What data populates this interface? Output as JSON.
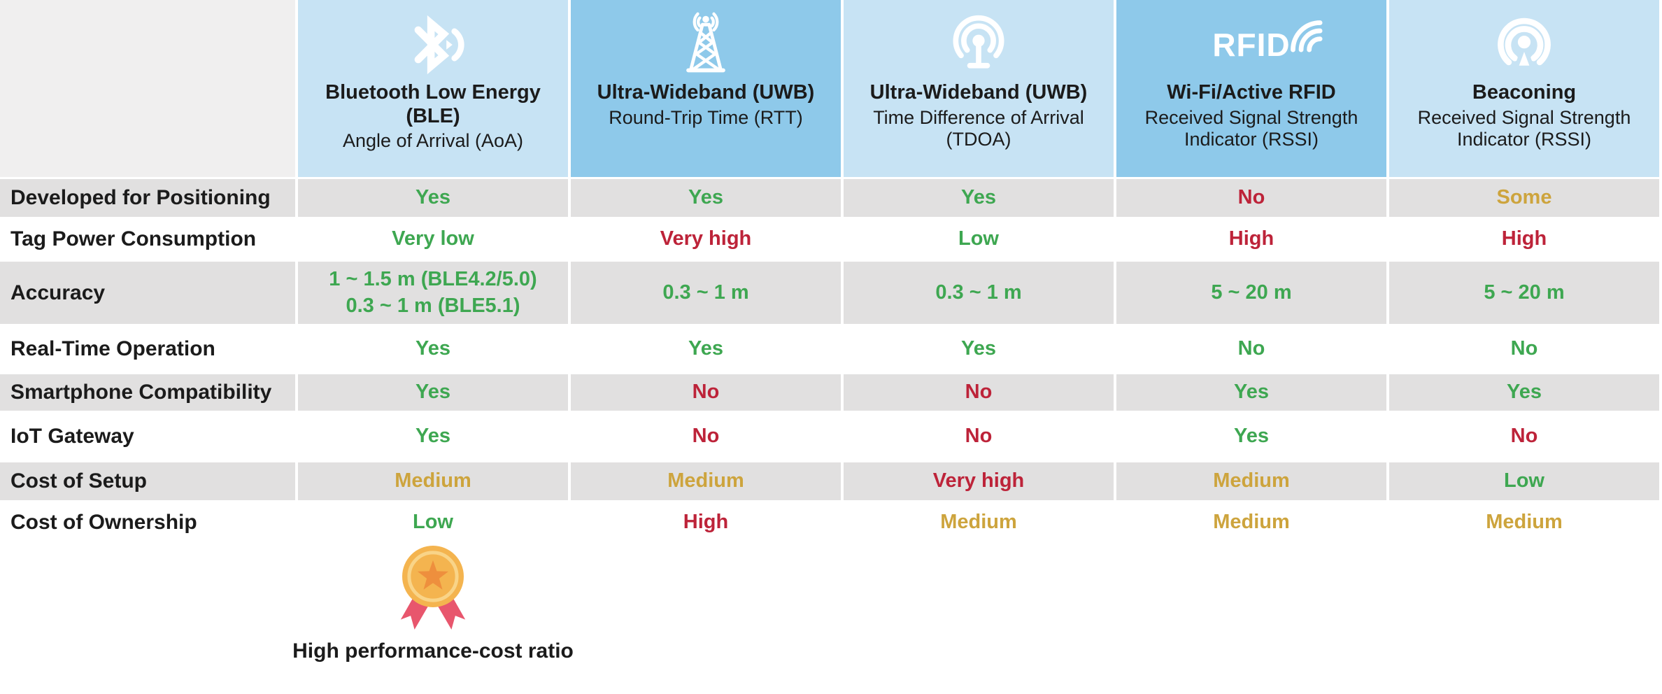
{
  "chart_data": {
    "type": "table",
    "columns": [
      {
        "title": "Bluetooth Low Energy (BLE)",
        "subtitle": "Angle of Arrival (AoA)",
        "icon": "bluetooth-icon",
        "shade": "light"
      },
      {
        "title": "Ultra-Wideband (UWB)",
        "subtitle": "Round-Trip Time (RTT)",
        "icon": "radio-tower-icon",
        "shade": "dark"
      },
      {
        "title": "Ultra-Wideband (UWB)",
        "subtitle": "Time Difference of Arrival (TDOA)",
        "icon": "antenna-icon",
        "shade": "light"
      },
      {
        "title": "Wi-Fi/Active RFID",
        "subtitle": "Received Signal Strength Indicator (RSSI)",
        "icon": "rfid-icon",
        "shade": "dark"
      },
      {
        "title": "Beaconing",
        "subtitle": "Received Signal Strength Indicator (RSSI)",
        "icon": "beacon-icon",
        "shade": "light"
      }
    ],
    "rows": [
      {
        "label": "Developed for Positioning",
        "values": [
          {
            "text": "Yes",
            "status": "good"
          },
          {
            "text": "Yes",
            "status": "good"
          },
          {
            "text": "Yes",
            "status": "good"
          },
          {
            "text": "No",
            "status": "bad"
          },
          {
            "text": "Some",
            "status": "neutral"
          }
        ]
      },
      {
        "label": "Tag Power Consumption",
        "values": [
          {
            "text": "Very low",
            "status": "good"
          },
          {
            "text": "Very high",
            "status": "bad"
          },
          {
            "text": "Low",
            "status": "good"
          },
          {
            "text": "High",
            "status": "bad"
          },
          {
            "text": "High",
            "status": "bad"
          }
        ]
      },
      {
        "label": "Accuracy",
        "values": [
          {
            "text": "1 ~ 1.5 m (BLE4.2/5.0)\n0.3 ~ 1 m (BLE5.1)",
            "status": "good"
          },
          {
            "text": "0.3 ~ 1 m",
            "status": "good"
          },
          {
            "text": "0.3 ~ 1 m",
            "status": "good"
          },
          {
            "text": "5 ~ 20 m",
            "status": "good"
          },
          {
            "text": "5 ~ 20 m",
            "status": "good"
          }
        ]
      },
      {
        "label": "Real-Time Operation",
        "values": [
          {
            "text": "Yes",
            "status": "good"
          },
          {
            "text": "Yes",
            "status": "good"
          },
          {
            "text": "Yes",
            "status": "good"
          },
          {
            "text": "No",
            "status": "good"
          },
          {
            "text": "No",
            "status": "good"
          }
        ]
      },
      {
        "label": "Smartphone Compatibility",
        "values": [
          {
            "text": "Yes",
            "status": "good"
          },
          {
            "text": "No",
            "status": "bad"
          },
          {
            "text": "No",
            "status": "bad"
          },
          {
            "text": "Yes",
            "status": "good"
          },
          {
            "text": "Yes",
            "status": "good"
          }
        ]
      },
      {
        "label": "IoT Gateway",
        "values": [
          {
            "text": "Yes",
            "status": "good"
          },
          {
            "text": "No",
            "status": "bad"
          },
          {
            "text": "No",
            "status": "bad"
          },
          {
            "text": "Yes",
            "status": "good"
          },
          {
            "text": "No",
            "status": "bad"
          }
        ]
      },
      {
        "label": "Cost of Setup",
        "values": [
          {
            "text": "Medium",
            "status": "neutral"
          },
          {
            "text": "Medium",
            "status": "neutral"
          },
          {
            "text": "Very high",
            "status": "bad"
          },
          {
            "text": "Medium",
            "status": "neutral"
          },
          {
            "text": "Low",
            "status": "good"
          }
        ]
      },
      {
        "label": "Cost of Ownership",
        "values": [
          {
            "text": "Low",
            "status": "good"
          },
          {
            "text": "High",
            "status": "bad"
          },
          {
            "text": "Medium",
            "status": "neutral"
          },
          {
            "text": "Medium",
            "status": "neutral"
          },
          {
            "text": "Medium",
            "status": "neutral"
          }
        ]
      }
    ]
  },
  "badge": {
    "icon": "medal-icon",
    "caption": "High performance-cost ratio"
  },
  "rfid_icon_text": "RFID",
  "colors": {
    "good": "#3ea751",
    "bad": "#bd2339",
    "neutral": "#cda43d",
    "header_light": "#c7e3f4",
    "header_dark": "#8ec9ea",
    "row_gray": "#e1e0e0",
    "corner_gray": "#f0efef",
    "text_dark": "#1b1b1b",
    "medal_gold": "#f4b44f",
    "medal_light": "#f9d488",
    "star_orange": "#ee8f3d",
    "ribbon_red": "#e8566d"
  }
}
